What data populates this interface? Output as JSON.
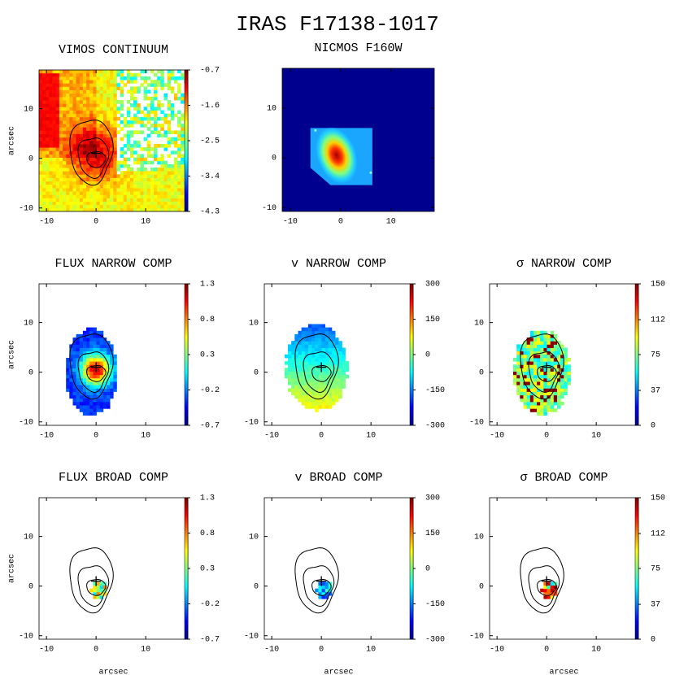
{
  "title": "IRAS F17138-1017",
  "panels": [
    {
      "title": "VIMOS CONTINUUM",
      "ylabel": "arcsec",
      "xlim": [
        -11.5,
        18.5
      ],
      "ylim": [
        -10.7,
        17.8
      ],
      "xticks": [
        -10,
        0,
        10
      ],
      "yticks": [
        -10,
        0,
        10
      ],
      "clim": [
        -4.3,
        -0.7
      ],
      "cticks": [
        -0.7,
        -1.6,
        -2.5,
        -3.4,
        -4.3
      ]
    },
    {
      "title": "NICMOS F160W",
      "xlim": [
        -11.6,
        18.6
      ],
      "ylim": [
        -10.8,
        18
      ],
      "xticks": [
        -10,
        0,
        10
      ],
      "yticks": [
        -10,
        0,
        10
      ]
    },
    {
      "title": "FLUX NARROW COMP",
      "ylabel": "arcsec",
      "xlim": [
        -11.5,
        18.5
      ],
      "ylim": [
        -10.7,
        17.8
      ],
      "xticks": [
        -10,
        0,
        10
      ],
      "yticks": [
        -10,
        0,
        10
      ],
      "clim": [
        -0.7,
        1.3
      ],
      "cticks": [
        1.3,
        0.8,
        0.3,
        -0.2,
        -0.7
      ]
    },
    {
      "title": "v NARROW COMP",
      "xlim": [
        -11.5,
        18.5
      ],
      "ylim": [
        -10.7,
        17.8
      ],
      "xticks": [
        -10,
        0,
        10
      ],
      "yticks": [
        -10,
        0,
        10
      ],
      "clim": [
        -300,
        300
      ],
      "cticks": [
        300,
        150,
        0,
        -150,
        -300
      ]
    },
    {
      "title": "σ NARROW COMP",
      "xlim": [
        -11.5,
        18.5
      ],
      "ylim": [
        -10.7,
        17.8
      ],
      "xticks": [
        -10,
        0,
        10
      ],
      "yticks": [
        -10,
        0,
        10
      ],
      "clim": [
        0,
        150
      ],
      "cticks": [
        150,
        112,
        75,
        37,
        0
      ]
    },
    {
      "title": "FLUX BROAD COMP",
      "ylabel": "arcsec",
      "xlabel": "arcsec",
      "xlim": [
        -11.5,
        18.5
      ],
      "ylim": [
        -10.7,
        17.8
      ],
      "xticks": [
        -10,
        0,
        10
      ],
      "yticks": [
        -10,
        0,
        10
      ],
      "clim": [
        -0.7,
        1.3
      ],
      "cticks": [
        1.3,
        0.8,
        0.3,
        -0.2,
        -0.7
      ]
    },
    {
      "title": "v BROAD COMP",
      "xlabel": "arcsec",
      "xlim": [
        -11.5,
        18.5
      ],
      "ylim": [
        -10.7,
        17.8
      ],
      "xticks": [
        -10,
        0,
        10
      ],
      "yticks": [
        -10,
        0,
        10
      ],
      "clim": [
        -300,
        300
      ],
      "cticks": [
        300,
        150,
        0,
        -150,
        -300
      ]
    },
    {
      "title": "σ BROAD COMP",
      "xlabel": "arcsec",
      "xlim": [
        -11.5,
        18.5
      ],
      "ylim": [
        -10.7,
        17.8
      ],
      "xticks": [
        -10,
        0,
        10
      ],
      "yticks": [
        -10,
        0,
        10
      ],
      "clim": [
        0,
        150
      ],
      "cticks": [
        150,
        112,
        75,
        37,
        0
      ]
    }
  ]
}
